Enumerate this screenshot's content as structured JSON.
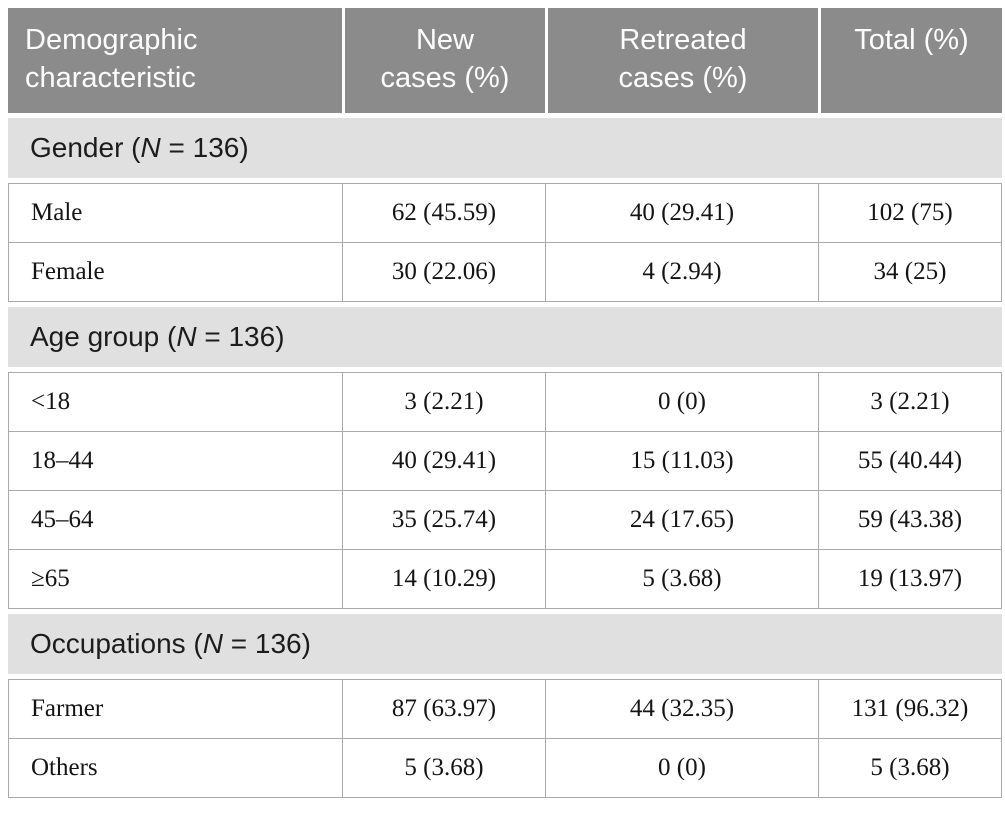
{
  "table": {
    "header": {
      "columns": [
        {
          "lines": [
            "Demographic",
            "characteristic"
          ]
        },
        {
          "lines": [
            "New",
            "cases (%)"
          ]
        },
        {
          "lines": [
            "Retreated",
            "cases (%)"
          ]
        },
        {
          "lines": [
            "Total (%)"
          ]
        }
      ]
    },
    "sections": [
      {
        "title_prefix": "Gender (",
        "title_n": "N",
        "title_suffix": " = 136)",
        "rows": [
          {
            "label": "Male",
            "new_cases": "62 (45.59)",
            "retreated": "40 (29.41)",
            "total": "102 (75)"
          },
          {
            "label": "Female",
            "new_cases": "30 (22.06)",
            "retreated": "4 (2.94)",
            "total": "34 (25)"
          }
        ]
      },
      {
        "title_prefix": "Age group (",
        "title_n": "N",
        "title_suffix": " = 136)",
        "rows": [
          {
            "label": "<18",
            "new_cases": "3 (2.21)",
            "retreated": "0 (0)",
            "total": "3 (2.21)"
          },
          {
            "label": "18–44",
            "new_cases": "40 (29.41)",
            "retreated": "15 (11.03)",
            "total": "55 (40.44)"
          },
          {
            "label": "45–64",
            "new_cases": "35 (25.74)",
            "retreated": "24 (17.65)",
            "total": "59 (43.38)"
          },
          {
            "label": "≥65",
            "new_cases": "14 (10.29)",
            "retreated": "5 (3.68)",
            "total": "19 (13.97)"
          }
        ]
      },
      {
        "title_prefix": "Occupations (",
        "title_n": "N",
        "title_suffix": " = 136)",
        "rows": [
          {
            "label": "Farmer",
            "new_cases": "87 (63.97)",
            "retreated": "44 (32.35)",
            "total": "131 (96.32)"
          },
          {
            "label": "Others",
            "new_cases": "5 (3.68)",
            "retreated": "0 (0)",
            "total": "5 (3.68)"
          }
        ]
      }
    ],
    "colors": {
      "header_bg": "#8b8b8b",
      "header_text": "#ffffff",
      "section_band_bg": "#e0e0e0",
      "body_text": "#141414",
      "border": "#aaaaaa"
    }
  }
}
